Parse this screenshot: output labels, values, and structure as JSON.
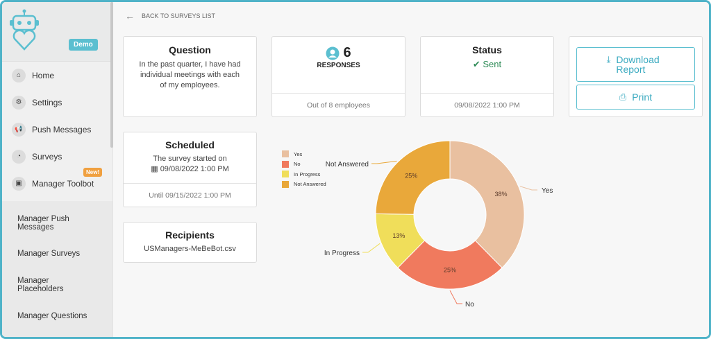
{
  "sidebar": {
    "demo_badge": "Demo",
    "items": [
      {
        "label": "Home",
        "icon": "home-icon",
        "glyph": "⌂"
      },
      {
        "label": "Settings",
        "icon": "gear-icon",
        "glyph": "⚙"
      },
      {
        "label": "Push Messages",
        "icon": "megaphone-icon",
        "glyph": "📢"
      },
      {
        "label": "Surveys",
        "icon": "pie-chart-icon",
        "glyph": "◔"
      },
      {
        "label": "Manager Toolbot",
        "icon": "briefcase-icon",
        "glyph": "▣"
      }
    ],
    "new_badge": "New!",
    "sub_items": [
      "Manager Push Messages",
      "Manager Surveys",
      "Manager Placeholders",
      "Manager Questions"
    ]
  },
  "main": {
    "back_label": "BACK TO SURVEYS LIST",
    "question": {
      "title": "Question",
      "text": "In the past quarter, I have had individual meetings with each of my employees."
    },
    "responses": {
      "count": "6",
      "label": "RESPONSES",
      "footer": "Out of 8 employees"
    },
    "status": {
      "title": "Status",
      "value": "Sent",
      "footer": "09/08/2022 1:00 PM"
    },
    "download_label": "Download Report",
    "print_label": "Print",
    "scheduled": {
      "title": "Scheduled",
      "line1": "The survey started on",
      "line2": "09/08/2022 1:00 PM",
      "footer": "Until 09/15/2022 1:00 PM"
    },
    "recipients": {
      "title": "Recipients",
      "value": "USManagers-MeBeBot.csv"
    }
  },
  "chart_data": {
    "type": "pie",
    "categories": [
      "Yes",
      "No",
      "In Progress",
      "Not Answered"
    ],
    "values": [
      38,
      25,
      13,
      25
    ],
    "labels": [
      "38%",
      "25%",
      "13%",
      "25%"
    ],
    "colors": [
      "#e9c0a0",
      "#f07a5e",
      "#f0de5a",
      "#e9a83a"
    ],
    "legend": "top-left"
  }
}
